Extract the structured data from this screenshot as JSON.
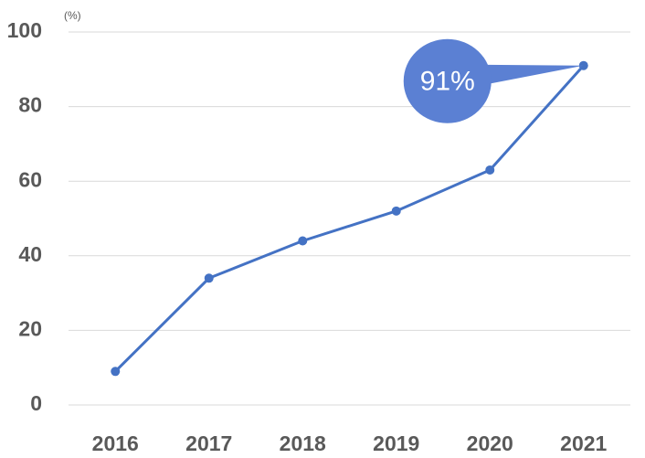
{
  "chart_data": {
    "type": "line",
    "y_unit": "(%)",
    "categories": [
      "2016",
      "2017",
      "2018",
      "2019",
      "2020",
      "2021"
    ],
    "series": [
      {
        "color": "#4472c4",
        "values": [
          9,
          34,
          44,
          52,
          63,
          91
        ],
        "value_labels": [
          null,
          null,
          null,
          null,
          null,
          "91%"
        ]
      }
    ],
    "ylim": [
      0,
      100
    ],
    "yticks": [
      0,
      20,
      40,
      60,
      80,
      100
    ],
    "grid": true
  }
}
